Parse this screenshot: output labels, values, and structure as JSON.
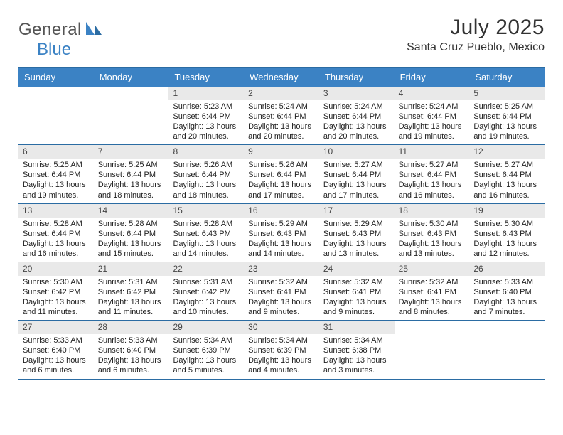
{
  "brand": {
    "part1": "General",
    "part2": "Blue"
  },
  "title": "July 2025",
  "location": "Santa Cruz Pueblo, Mexico",
  "style": {
    "accent": "#3b82c4",
    "header_border": "#2b6ca3",
    "daynum_bg": "#e9e9e9",
    "body_bg": "#ffffff",
    "text_color": "#222222",
    "day_header_fontsize": 13,
    "cell_fontsize": 11
  },
  "day_headers": [
    "Sunday",
    "Monday",
    "Tuesday",
    "Wednesday",
    "Thursday",
    "Friday",
    "Saturday"
  ],
  "weeks": [
    [
      null,
      null,
      {
        "n": "1",
        "sr": "5:23 AM",
        "ss": "6:44 PM",
        "dl": "13 hours and 20 minutes."
      },
      {
        "n": "2",
        "sr": "5:24 AM",
        "ss": "6:44 PM",
        "dl": "13 hours and 20 minutes."
      },
      {
        "n": "3",
        "sr": "5:24 AM",
        "ss": "6:44 PM",
        "dl": "13 hours and 20 minutes."
      },
      {
        "n": "4",
        "sr": "5:24 AM",
        "ss": "6:44 PM",
        "dl": "13 hours and 19 minutes."
      },
      {
        "n": "5",
        "sr": "5:25 AM",
        "ss": "6:44 PM",
        "dl": "13 hours and 19 minutes."
      }
    ],
    [
      {
        "n": "6",
        "sr": "5:25 AM",
        "ss": "6:44 PM",
        "dl": "13 hours and 19 minutes."
      },
      {
        "n": "7",
        "sr": "5:25 AM",
        "ss": "6:44 PM",
        "dl": "13 hours and 18 minutes."
      },
      {
        "n": "8",
        "sr": "5:26 AM",
        "ss": "6:44 PM",
        "dl": "13 hours and 18 minutes."
      },
      {
        "n": "9",
        "sr": "5:26 AM",
        "ss": "6:44 PM",
        "dl": "13 hours and 17 minutes."
      },
      {
        "n": "10",
        "sr": "5:27 AM",
        "ss": "6:44 PM",
        "dl": "13 hours and 17 minutes."
      },
      {
        "n": "11",
        "sr": "5:27 AM",
        "ss": "6:44 PM",
        "dl": "13 hours and 16 minutes."
      },
      {
        "n": "12",
        "sr": "5:27 AM",
        "ss": "6:44 PM",
        "dl": "13 hours and 16 minutes."
      }
    ],
    [
      {
        "n": "13",
        "sr": "5:28 AM",
        "ss": "6:44 PM",
        "dl": "13 hours and 16 minutes."
      },
      {
        "n": "14",
        "sr": "5:28 AM",
        "ss": "6:44 PM",
        "dl": "13 hours and 15 minutes."
      },
      {
        "n": "15",
        "sr": "5:28 AM",
        "ss": "6:43 PM",
        "dl": "13 hours and 14 minutes."
      },
      {
        "n": "16",
        "sr": "5:29 AM",
        "ss": "6:43 PM",
        "dl": "13 hours and 14 minutes."
      },
      {
        "n": "17",
        "sr": "5:29 AM",
        "ss": "6:43 PM",
        "dl": "13 hours and 13 minutes."
      },
      {
        "n": "18",
        "sr": "5:30 AM",
        "ss": "6:43 PM",
        "dl": "13 hours and 13 minutes."
      },
      {
        "n": "19",
        "sr": "5:30 AM",
        "ss": "6:43 PM",
        "dl": "13 hours and 12 minutes."
      }
    ],
    [
      {
        "n": "20",
        "sr": "5:30 AM",
        "ss": "6:42 PM",
        "dl": "13 hours and 11 minutes."
      },
      {
        "n": "21",
        "sr": "5:31 AM",
        "ss": "6:42 PM",
        "dl": "13 hours and 11 minutes."
      },
      {
        "n": "22",
        "sr": "5:31 AM",
        "ss": "6:42 PM",
        "dl": "13 hours and 10 minutes."
      },
      {
        "n": "23",
        "sr": "5:32 AM",
        "ss": "6:41 PM",
        "dl": "13 hours and 9 minutes."
      },
      {
        "n": "24",
        "sr": "5:32 AM",
        "ss": "6:41 PM",
        "dl": "13 hours and 9 minutes."
      },
      {
        "n": "25",
        "sr": "5:32 AM",
        "ss": "6:41 PM",
        "dl": "13 hours and 8 minutes."
      },
      {
        "n": "26",
        "sr": "5:33 AM",
        "ss": "6:40 PM",
        "dl": "13 hours and 7 minutes."
      }
    ],
    [
      {
        "n": "27",
        "sr": "5:33 AM",
        "ss": "6:40 PM",
        "dl": "13 hours and 6 minutes."
      },
      {
        "n": "28",
        "sr": "5:33 AM",
        "ss": "6:40 PM",
        "dl": "13 hours and 6 minutes."
      },
      {
        "n": "29",
        "sr": "5:34 AM",
        "ss": "6:39 PM",
        "dl": "13 hours and 5 minutes."
      },
      {
        "n": "30",
        "sr": "5:34 AM",
        "ss": "6:39 PM",
        "dl": "13 hours and 4 minutes."
      },
      {
        "n": "31",
        "sr": "5:34 AM",
        "ss": "6:38 PM",
        "dl": "13 hours and 3 minutes."
      },
      null,
      null
    ]
  ],
  "labels": {
    "sunrise": "Sunrise: ",
    "sunset": "Sunset: ",
    "daylight": "Daylight: "
  }
}
